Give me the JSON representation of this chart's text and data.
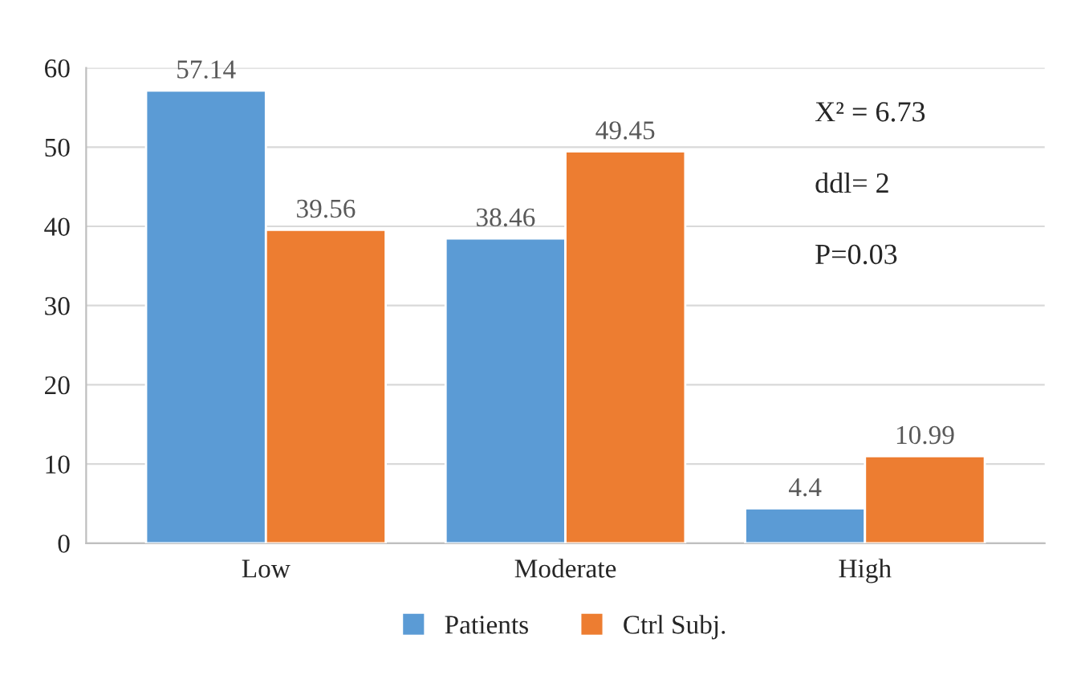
{
  "chart_data": {
    "type": "bar",
    "categories": [
      "Low",
      "Moderate",
      "High"
    ],
    "series": [
      {
        "name": "Patients",
        "color": "#5b9bd5",
        "values": [
          57.14,
          38.46,
          4.4
        ]
      },
      {
        "name": "Ctrl Subj.",
        "color": "#ed7d31",
        "values": [
          39.56,
          49.45,
          10.99
        ]
      }
    ],
    "ylim": [
      0,
      60
    ],
    "yticks": [
      0,
      10,
      20,
      30,
      40,
      50,
      60
    ],
    "grid": "y",
    "legend": "bottom",
    "data_labels": true,
    "annotations": [
      "X² = 6.73",
      "ddl= 2",
      "P=0.03"
    ]
  }
}
